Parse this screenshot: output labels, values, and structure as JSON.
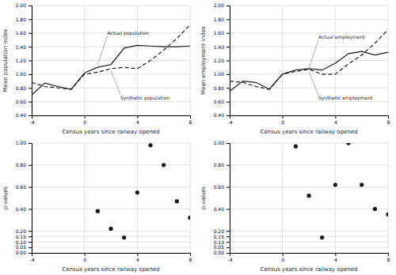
{
  "chart_data": [
    {
      "type": "line",
      "x": [
        -4,
        -3,
        -2,
        -1,
        0,
        1,
        2,
        3,
        4,
        5,
        6,
        7,
        8
      ],
      "series": [
        {
          "color": "#1a1a1a",
          "line_style": "solid",
          "values": [
            0.7,
            0.87,
            0.82,
            0.78,
            1.02,
            1.1,
            1.14,
            1.38,
            1.42,
            1.41,
            1.4,
            1.4,
            1.41
          ]
        },
        {
          "color": "#1a1a1a",
          "line_style": "dashed",
          "values": [
            0.88,
            0.82,
            0.8,
            0.78,
            1.0,
            1.03,
            1.08,
            1.1,
            1.08,
            1.2,
            1.35,
            1.52,
            1.72
          ]
        }
      ],
      "xlabel": "Census years since railway opened",
      "ylabel": "Mean population index",
      "xlim": [
        -4,
        8
      ],
      "xticks": [
        -4,
        0,
        4,
        8
      ],
      "ylim": [
        0.4,
        2.0
      ],
      "yticks": [
        {
          "value": 0.4,
          "label": "0.40"
        },
        {
          "value": 0.6,
          "label": "0.60"
        },
        {
          "value": 0.8,
          "label": "0.80"
        },
        {
          "value": 1.0,
          "label": "1.00"
        },
        {
          "value": 1.2,
          "label": "1.20"
        },
        {
          "value": 1.4,
          "label": "1.40"
        },
        {
          "value": 1.6,
          "label": "1.60"
        },
        {
          "value": 1.8,
          "label": "1.80"
        },
        {
          "value": 2.0,
          "label": "2.00"
        }
      ],
      "grid": true,
      "annotations": [
        {
          "text": "Actual population",
          "x": 1,
          "y": 1.14
        },
        {
          "text": "Synthetic population",
          "x": 2,
          "y": 1.05
        }
      ]
    },
    {
      "type": "line",
      "x": [
        -4,
        -3,
        -2,
        -1,
        0,
        1,
        2,
        3,
        4,
        5,
        6,
        7,
        8
      ],
      "series": [
        {
          "color": "#1a1a1a",
          "line_style": "solid",
          "values": [
            0.75,
            0.9,
            0.88,
            0.78,
            1.0,
            1.06,
            1.08,
            1.06,
            1.16,
            1.3,
            1.33,
            1.28,
            1.32
          ]
        },
        {
          "color": "#1a1a1a",
          "line_style": "dashed",
          "values": [
            0.9,
            0.88,
            0.82,
            0.78,
            1.0,
            1.04,
            1.07,
            1.0,
            1.0,
            1.15,
            1.28,
            1.45,
            1.65
          ]
        }
      ],
      "xlabel": "Census years since railway opened",
      "ylabel": "Mean employment index",
      "xlim": [
        -4,
        8
      ],
      "xticks": [
        -4,
        0,
        4,
        8
      ],
      "ylim": [
        0.4,
        2.0
      ],
      "yticks": [
        {
          "value": 0.4,
          "label": "0.40"
        },
        {
          "value": 0.6,
          "label": "0.60"
        },
        {
          "value": 0.8,
          "label": "0.80"
        },
        {
          "value": 1.0,
          "label": "1.00"
        },
        {
          "value": 1.2,
          "label": "1.20"
        },
        {
          "value": 1.4,
          "label": "1.40"
        },
        {
          "value": 1.6,
          "label": "1.60"
        },
        {
          "value": 1.8,
          "label": "1.80"
        },
        {
          "value": 2.0,
          "label": "2.00"
        }
      ],
      "grid": true,
      "annotations": [
        {
          "text": "Actual employment",
          "x": 2,
          "y": 1.08
        },
        {
          "text": "Synthetic employment",
          "x": 2,
          "y": 1.04
        }
      ]
    },
    {
      "type": "scatter",
      "x": [
        1,
        2,
        3,
        4,
        5,
        6,
        7,
        8
      ],
      "series": [
        {
          "color": "#1a1a1a",
          "marker": "circle",
          "values": [
            0.38,
            0.22,
            0.14,
            0.55,
            0.98,
            0.8,
            0.47,
            0.32
          ]
        }
      ],
      "xlabel": "Census years since railway opened",
      "ylabel": "p-values",
      "xlim": [
        -4,
        8
      ],
      "xticks": [
        -4,
        0,
        4,
        8
      ],
      "ylim": [
        0.0,
        1.0
      ],
      "yticks": [
        {
          "value": 0.0,
          "label": "0.00"
        },
        {
          "value": 0.05,
          "label": "0.05"
        },
        {
          "value": 0.1,
          "label": "0.10"
        },
        {
          "value": 0.15,
          "label": "0.15"
        },
        {
          "value": 0.2,
          "label": "0.20"
        },
        {
          "value": 0.4,
          "label": "0.40"
        },
        {
          "value": 0.6,
          "label": "0.60"
        },
        {
          "value": 0.8,
          "label": "0.80"
        },
        {
          "value": 1.0,
          "label": "1.00"
        }
      ],
      "grid": true
    },
    {
      "type": "scatter",
      "x": [
        1,
        2,
        3,
        4,
        5,
        6,
        7,
        8
      ],
      "series": [
        {
          "color": "#1a1a1a",
          "marker": "circle",
          "values": [
            0.97,
            0.52,
            0.14,
            0.62,
            1.0,
            0.62,
            0.4,
            0.35
          ]
        }
      ],
      "xlabel": "Census years since railway opened",
      "ylabel": "p-values",
      "xlim": [
        -4,
        8
      ],
      "xticks": [
        -4,
        0,
        4,
        8
      ],
      "ylim": [
        0.0,
        1.0
      ],
      "yticks": [
        {
          "value": 0.0,
          "label": "0.00"
        },
        {
          "value": 0.05,
          "label": "0.05"
        },
        {
          "value": 0.1,
          "label": "0.10"
        },
        {
          "value": 0.15,
          "label": "0.15"
        },
        {
          "value": 0.2,
          "label": "0.20"
        },
        {
          "value": 0.4,
          "label": "0.40"
        },
        {
          "value": 0.6,
          "label": "0.60"
        },
        {
          "value": 0.8,
          "label": "0.80"
        },
        {
          "value": 1.0,
          "label": "1.00"
        }
      ],
      "grid": true
    }
  ]
}
